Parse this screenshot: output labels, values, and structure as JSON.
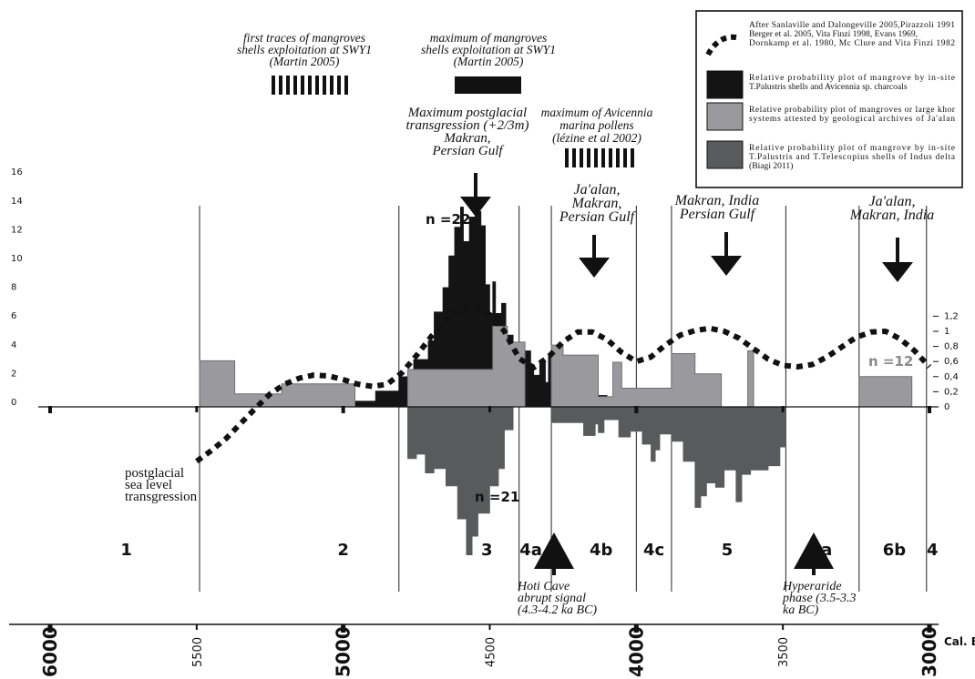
{
  "chart_data": {
    "type": "area",
    "x_axis": {
      "unit_label": "Cal. BC",
      "range": [
        6000,
        3000
      ],
      "major_ticks": [
        "6000",
        "5000",
        "4000",
        "3000"
      ],
      "minor_ticks": [
        "5500",
        "4500",
        "3500"
      ]
    },
    "y_left": {
      "range": [
        0,
        16
      ],
      "ticks": [
        "0",
        "2",
        "4",
        "6",
        "8",
        "10",
        "12",
        "14",
        "16"
      ]
    },
    "y_right": {
      "range": [
        0,
        1.2
      ],
      "ticks": [
        "0",
        "0,2",
        "0,4",
        "0,6",
        "0,8",
        "1",
        "1,2"
      ]
    },
    "phase_boundaries": [
      5490,
      4810,
      4400,
      4290,
      4000,
      3880,
      3490,
      3240,
      3010
    ],
    "phases": [
      {
        "label": "1",
        "x": 5740
      },
      {
        "label": "2",
        "x": 5000
      },
      {
        "label": "3",
        "x": 4510
      },
      {
        "label": "4a",
        "x": 4360
      },
      {
        "label": "4b",
        "x": 4120
      },
      {
        "label": "4c",
        "x": 3940
      },
      {
        "label": "5",
        "x": 3690
      },
      {
        "label": "6a",
        "x": 3370
      },
      {
        "label": "6b",
        "x": 3120
      },
      {
        "label": "4",
        "x": 2990
      }
    ],
    "legend": [
      {
        "kind": "dotted",
        "lines": [
          "After Sanlaville and Dalongeville 2005,Pirazzoli 1991",
          "Berger et al. 2005, Vita Finzi 1998, Evans 1969,",
          "Dornkamp et al. 1980, Mc Clure and Vita Finzi 1982"
        ]
      },
      {
        "kind": "black",
        "color": "#141414",
        "lines": [
          "Relative probability plot of mangrove  by in-site",
          "T.Palustris shells and Avicennia sp. charcoals"
        ]
      },
      {
        "kind": "lightgray",
        "color": "#9a9a9e",
        "lines": [
          "Relative probability plot of mangroves or large khor",
          "systems attested by geological archives of Ja'alan"
        ]
      },
      {
        "kind": "darkgray",
        "color": "#575b5c",
        "lines": [
          "Relative probability plot of mangrove  by in-site",
          "T.Palustris and T.Telescopius shells of Indus delta",
          "(Biagi 2011)"
        ]
      }
    ],
    "series": [
      {
        "name": "Sea level (dotted)",
        "scale": "right",
        "x": [
          5500,
          5450,
          5400,
          5350,
          5300,
          5250,
          5200,
          5150,
          5100,
          5050,
          5000,
          4950,
          4900,
          4850,
          4800,
          4750,
          4700,
          4650,
          4600,
          4550,
          4500,
          4450,
          4400,
          4350,
          4300,
          4250,
          4200,
          4150,
          4100,
          4050,
          4000,
          3950,
          3900,
          3850,
          3800,
          3750,
          3700,
          3650,
          3600,
          3550,
          3500,
          3450,
          3400,
          3350,
          3300,
          3250,
          3200,
          3150,
          3100,
          3050,
          3000
        ],
        "y": [
          -0.72,
          -0.58,
          -0.42,
          -0.22,
          -0.02,
          0.17,
          0.3,
          0.38,
          0.42,
          0.41,
          0.36,
          0.3,
          0.27,
          0.3,
          0.45,
          0.68,
          0.93,
          1.15,
          1.3,
          1.33,
          1.22,
          1.0,
          0.64,
          0.52,
          0.66,
          0.86,
          0.99,
          0.99,
          0.89,
          0.72,
          0.6,
          0.66,
          0.82,
          0.95,
          1.01,
          1.04,
          1.0,
          0.91,
          0.77,
          0.63,
          0.55,
          0.53,
          0.56,
          0.66,
          0.79,
          0.92,
          0.99,
          1.0,
          0.9,
          0.74,
          0.53
        ]
      },
      {
        "name": "Ja'alan geological archives (light gray)",
        "scale": "left",
        "x": [
          5500,
          5490,
          5490,
          5370,
          5370,
          5360,
          5360,
          5210,
          5210,
          5080,
          5080,
          4960,
          4960,
          4780,
          4780,
          4490,
          4490,
          4440,
          4440,
          4380,
          4380,
          4290,
          4290,
          4250,
          4250,
          4130,
          4130,
          4080,
          4080,
          4050,
          4050,
          3950,
          3950,
          3940,
          3940,
          3930,
          3930,
          3880,
          3880,
          3800,
          3800,
          3710,
          3710,
          3620,
          3620,
          3600,
          3600,
          3510,
          3510,
          3240,
          3240,
          3060,
          3060
        ],
        "y": [
          0,
          0,
          3.2,
          3.2,
          0.9,
          0.9,
          0.9,
          0.9,
          1.6,
          1.6,
          1.6,
          1.6,
          0,
          0,
          2.6,
          2.6,
          5.6,
          5.6,
          4.5,
          4.5,
          0,
          0,
          4.3,
          4.3,
          3.6,
          3.6,
          0.7,
          0.7,
          3.1,
          3.1,
          1.3,
          1.3,
          1.3,
          1.3,
          1.3,
          1.3,
          1.3,
          1.3,
          3.7,
          3.7,
          2.3,
          2.3,
          0,
          0,
          3.9,
          3.9,
          0,
          0,
          0,
          0,
          2.1,
          2.1,
          0
        ]
      },
      {
        "name": "Mangrove shells and charcoals (black)",
        "scale": "left",
        "x": [
          5370,
          5370,
          5200,
          5200,
          4990,
          4990,
          4960,
          4960,
          4890,
          4890,
          4810,
          4810,
          4760,
          4760,
          4710,
          4710,
          4690,
          4690,
          4660,
          4660,
          4640,
          4640,
          4620,
          4620,
          4600,
          4600,
          4590,
          4590,
          4570,
          4570,
          4550,
          4550,
          4530,
          4530,
          4515,
          4515,
          4500,
          4500,
          4490,
          4490,
          4480,
          4480,
          4460,
          4460,
          4445,
          4445,
          4420,
          4420,
          4400,
          4400,
          4380,
          4380,
          4360,
          4360,
          4350,
          4350,
          4330,
          4330,
          4310,
          4310,
          4300,
          4300,
          4290,
          4290,
          4280,
          4280,
          4270,
          4270,
          4250,
          4250,
          4170,
          4170,
          4140,
          4140,
          4100,
          4100
        ],
        "y": [
          0,
          0.7,
          0.7,
          0.7,
          0.7,
          0,
          0,
          0.4,
          0.4,
          1.1,
          1.1,
          2.1,
          2.1,
          3.3,
          3.3,
          4.6,
          4.6,
          6.6,
          6.6,
          8.3,
          8.3,
          10.5,
          10.5,
          12.5,
          12.5,
          13.9,
          13.9,
          11.5,
          11.5,
          13.2,
          13.2,
          13.6,
          13.6,
          12.6,
          12.6,
          8.5,
          8.5,
          6.5,
          6.5,
          8.7,
          8.7,
          6.5,
          6.5,
          7.2,
          7.2,
          5.0,
          5.0,
          2.9,
          2.9,
          2.3,
          2.3,
          3.9,
          3.9,
          2.7,
          2.7,
          2.2,
          2.2,
          3.2,
          3.2,
          1.7,
          1.7,
          3.7,
          3.7,
          3.1,
          3.1,
          2.2,
          2.2,
          3.2,
          3.2,
          1.6,
          1.6,
          1.4,
          1.4,
          0.8,
          0.8,
          0
        ]
      },
      {
        "name": "Indus delta shells (dark gray)",
        "scale": "left",
        "x": [
          4780,
          4780,
          4750,
          4750,
          4720,
          4720,
          4690,
          4690,
          4650,
          4650,
          4610,
          4610,
          4580,
          4580,
          4560,
          4560,
          4540,
          4540,
          4500,
          4500,
          4470,
          4470,
          4450,
          4450,
          4420,
          4420,
          4290,
          4290,
          4180,
          4180,
          4140,
          4140,
          4130,
          4130,
          4110,
          4110,
          4060,
          4060,
          4020,
          4020,
          3980,
          3980,
          3950,
          3950,
          3935,
          3935,
          3920,
          3920,
          3880,
          3880,
          3840,
          3840,
          3800,
          3800,
          3780,
          3780,
          3760,
          3760,
          3730,
          3730,
          3700,
          3700,
          3660,
          3660,
          3640,
          3640,
          3610,
          3610,
          3580,
          3580,
          3550,
          3550,
          3510,
          3510,
          3490,
          3490
        ],
        "y": [
          0,
          3.6,
          3.6,
          3.3,
          3.3,
          4.6,
          4.6,
          4.3,
          4.3,
          5.5,
          5.5,
          7.8,
          7.8,
          10.3,
          10.3,
          9.0,
          9.0,
          7.4,
          7.4,
          5.5,
          5.5,
          4.3,
          4.3,
          1.6,
          1.6,
          0,
          0,
          1.1,
          1.1,
          2.0,
          2.0,
          1.2,
          1.2,
          1.8,
          1.8,
          0.9,
          0.9,
          2.1,
          2.1,
          1.7,
          1.7,
          2.6,
          2.6,
          3.8,
          3.8,
          3.0,
          3.0,
          1.9,
          1.9,
          2.4,
          2.4,
          3.8,
          3.8,
          7.0,
          7.0,
          6.2,
          6.2,
          5.3,
          5.3,
          5.6,
          5.6,
          4.4,
          4.4,
          6.6,
          6.6,
          4.7,
          4.7,
          4.4,
          4.4,
          4.4,
          4.4,
          4.1,
          4.1,
          2.8,
          2.8,
          0
        ]
      }
    ],
    "annotations": {
      "first_traces": [
        "first traces of mangroves",
        "shells exploitation at SWY1",
        "(Martin 2005)"
      ],
      "maximum_mangroves": [
        "maximum of mangroves",
        "shells exploitation at SWY1",
        "(Martin 2005)"
      ],
      "max_postglacial": [
        "Maximum postglacial",
        "transgression (+2/3m)",
        "Makran,",
        "Persian Gulf"
      ],
      "max_avicennia": [
        "maximum of Avicennia",
        "marina pollens",
        "(lézine et al 2002)"
      ],
      "jaalan_1": [
        "Ja'alan,",
        "Makran,",
        "Persian Gulf"
      ],
      "makran_india": [
        "Makran, India",
        "Persian Gulf"
      ],
      "jaalan_2": [
        "Ja'alan,",
        "Makran, India"
      ],
      "postglacial": [
        "postglacial",
        "sea level",
        "transgression"
      ],
      "hoti_cave": [
        "Hoti Cave",
        "abrupt signal",
        "(4.3-4.2 ka BC)"
      ],
      "hyperaride": [
        "Hyperaride",
        "phase (3.5-3.3",
        "ka BC)"
      ],
      "n22": "n =22",
      "n21": "n =21",
      "n12": "n =12"
    }
  }
}
